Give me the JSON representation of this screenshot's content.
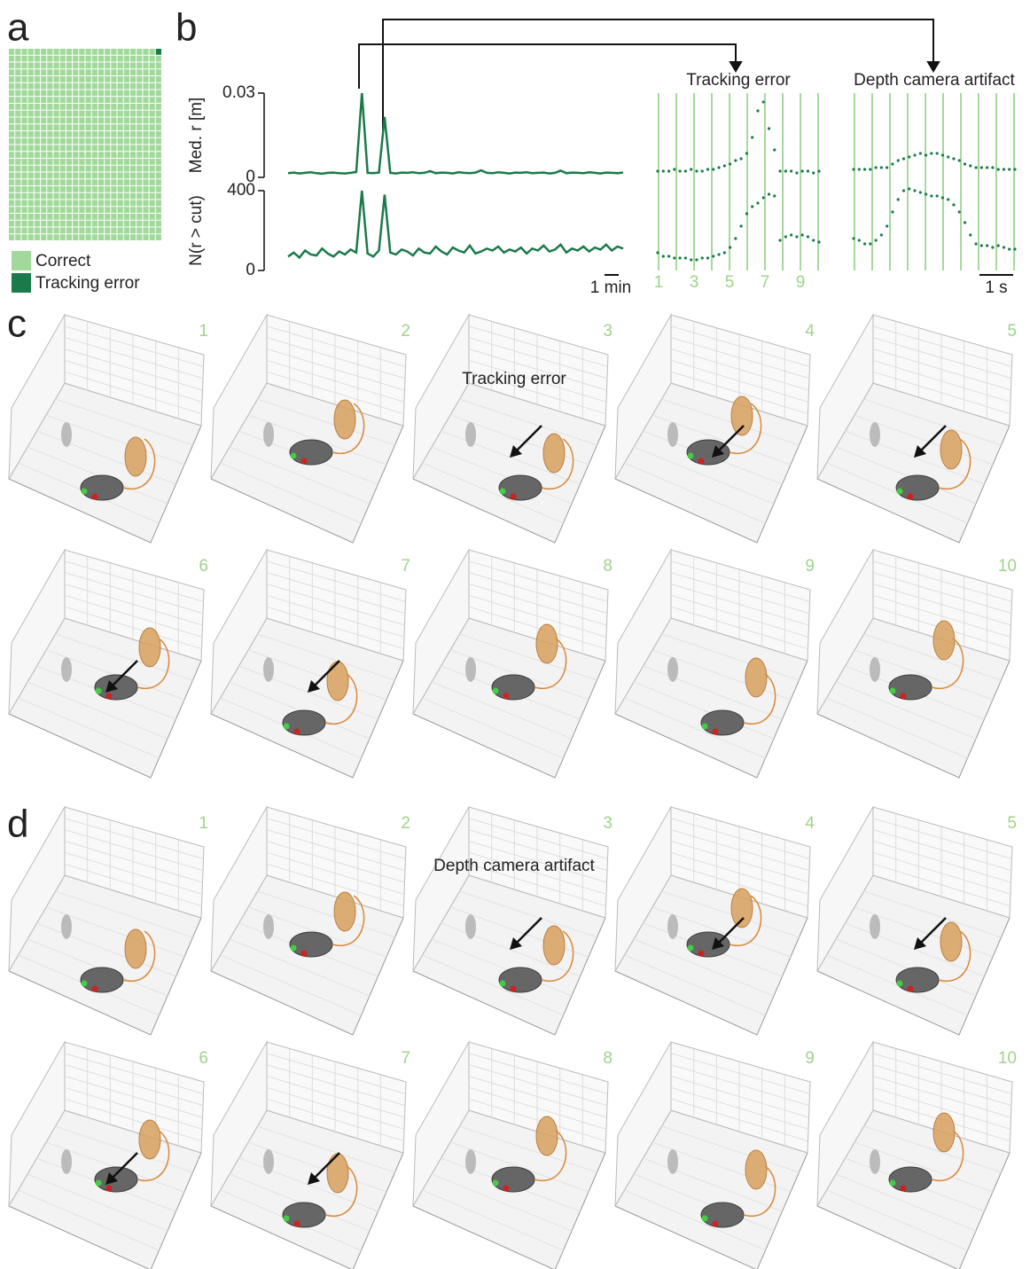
{
  "panel_letters": [
    "a",
    "b",
    "c",
    "d"
  ],
  "legend": [
    {
      "name": "Correct",
      "color": "#a1d99b"
    },
    {
      "name": "Tracking error",
      "color": "#1b7a4a"
    }
  ],
  "chart_data": [
    {
      "type": "line",
      "ylabel": "Med. r [m]",
      "ylim": [
        0,
        0.03
      ],
      "yticks": [
        0,
        0.03
      ],
      "series": [
        {
          "color": "#1b7a4a",
          "values": [
            0.0015,
            0.0017,
            0.0014,
            0.0016,
            0.0018,
            0.0015,
            0.0013,
            0.0016,
            0.0017,
            0.0015,
            0.0014,
            0.0016,
            0.0019,
            0.03,
            0.0016,
            0.0015,
            0.0017,
            0.0215,
            0.0016,
            0.0014,
            0.0017,
            0.0016,
            0.0018,
            0.0015,
            0.0016,
            0.0022,
            0.0015,
            0.0017,
            0.0016,
            0.0014,
            0.0018,
            0.0016,
            0.0015,
            0.0017,
            0.0025,
            0.0016,
            0.0015,
            0.0018,
            0.0016,
            0.0014,
            0.0017,
            0.0016,
            0.0018,
            0.0015,
            0.0016,
            0.0017,
            0.0014,
            0.0016,
            0.0024,
            0.0015,
            0.0017,
            0.0016,
            0.0015,
            0.0018,
            0.0016,
            0.0014,
            0.0017,
            0.0016,
            0.0015,
            0.0017
          ]
        }
      ]
    },
    {
      "type": "line",
      "ylabel": "N(r > cut)",
      "ylim": [
        0,
        400
      ],
      "yticks": [
        0,
        400
      ],
      "scale_bar": "1 min",
      "series": [
        {
          "color": "#1b7a4a",
          "values": [
            70,
            90,
            65,
            100,
            80,
            75,
            110,
            85,
            70,
            95,
            80,
            105,
            90,
            400,
            85,
            70,
            100,
            380,
            90,
            80,
            105,
            95,
            75,
            110,
            90,
            85,
            120,
            95,
            80,
            115,
            100,
            90,
            125,
            85,
            95,
            110,
            100,
            120,
            90,
            105,
            95,
            115,
            85,
            110,
            100,
            125,
            95,
            105,
            130,
            90,
            110,
            100,
            120,
            95,
            115,
            105,
            130,
            100,
            120,
            110
          ]
        }
      ]
    },
    {
      "type": "scatter",
      "title": "Tracking error",
      "ylim": [
        0,
        1
      ],
      "frame_labels": [
        1,
        3,
        5,
        7,
        9
      ],
      "frames": 10,
      "series": [
        {
          "color": "#1b7a4a",
          "values": [
            0.56,
            0.56,
            0.56,
            0.57,
            0.56,
            0.56,
            0.57,
            0.56,
            0.56,
            0.57,
            0.57,
            0.58,
            0.59,
            0.6,
            0.62,
            0.63,
            0.66,
            0.75,
            0.9,
            0.95,
            0.8,
            0.68,
            0.56,
            0.56,
            0.56,
            0.55,
            0.56,
            0.56,
            0.55,
            0.56
          ]
        },
        {
          "color": "#1b7a4a",
          "values": [
            0.1,
            0.08,
            0.08,
            0.07,
            0.07,
            0.07,
            0.06,
            0.06,
            0.07,
            0.07,
            0.08,
            0.09,
            0.1,
            0.13,
            0.18,
            0.25,
            0.32,
            0.36,
            0.38,
            0.41,
            0.43,
            0.42,
            0.17,
            0.19,
            0.2,
            0.19,
            0.2,
            0.19,
            0.17,
            0.16
          ]
        }
      ]
    },
    {
      "type": "scatter",
      "title": "Depth camera artifact",
      "ylim": [
        0,
        1
      ],
      "scale_bar": "1 s",
      "frames": 10,
      "series": [
        {
          "color": "#1b7a4a",
          "values": [
            0.57,
            0.57,
            0.57,
            0.57,
            0.58,
            0.58,
            0.58,
            0.6,
            0.62,
            0.63,
            0.64,
            0.65,
            0.66,
            0.65,
            0.66,
            0.66,
            0.65,
            0.64,
            0.63,
            0.62,
            0.6,
            0.59,
            0.58,
            0.58,
            0.58,
            0.58,
            0.57,
            0.57,
            0.57,
            0.57
          ]
        },
        {
          "color": "#1b7a4a",
          "values": [
            0.18,
            0.17,
            0.15,
            0.15,
            0.17,
            0.2,
            0.25,
            0.33,
            0.4,
            0.45,
            0.46,
            0.45,
            0.44,
            0.43,
            0.42,
            0.42,
            0.41,
            0.4,
            0.37,
            0.33,
            0.27,
            0.2,
            0.15,
            0.14,
            0.14,
            0.13,
            0.14,
            0.13,
            0.12,
            0.12
          ]
        }
      ]
    }
  ],
  "panels": [
    {
      "title": "Tracking error",
      "frames": [
        1,
        2,
        3,
        4,
        5,
        6,
        7,
        8,
        9,
        10
      ]
    },
    {
      "title": "Depth camera artifact",
      "frames": [
        1,
        2,
        3,
        4,
        5,
        6,
        7,
        8,
        9,
        10
      ]
    }
  ]
}
